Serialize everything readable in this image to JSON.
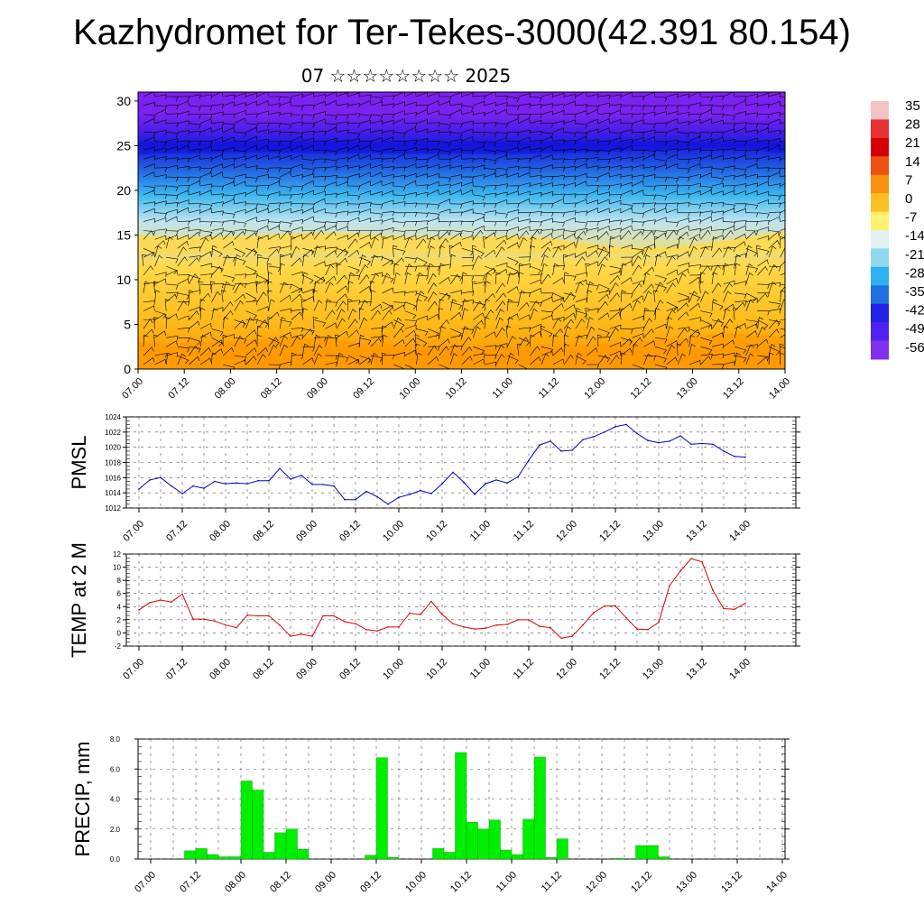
{
  "header": {
    "title": "Kazhydromet for Ter-Tekes-3000(42.391 80.154)",
    "subtitle": "07 ☆☆☆☆☆☆☆☆ 2025"
  },
  "colors": {
    "pmsl_line": "#0000cc",
    "temp_line": "#e00000",
    "precip_bar": "#00ee00",
    "precip_bar_edge": "#009900"
  },
  "chart_data": [
    {
      "type": "heatmap",
      "name": "wind-temperature-cross-section",
      "x_ticks": [
        "07.00",
        "07.12",
        "08.00",
        "08.12",
        "09.00",
        "09.12",
        "10.00",
        "10.12",
        "11.00",
        "11.12",
        "12.00",
        "12.12",
        "13.00",
        "13.12",
        "14.00"
      ],
      "y_ticks": [
        "0",
        "5",
        "10",
        "15",
        "20",
        "25",
        "30"
      ],
      "ylim": [
        0,
        31
      ],
      "colorbar_labels": [
        "35",
        "28",
        "21",
        "14",
        "7",
        "0",
        "-7",
        "-14",
        "-21",
        "-28",
        "-35",
        "-42",
        "-49",
        "-56"
      ],
      "colorbar_colors": [
        "#f4c4c4",
        "#e83030",
        "#d40000",
        "#f05010",
        "#f89010",
        "#fcc020",
        "#fff070",
        "#e0f0f0",
        "#90d8f0",
        "#30b0f0",
        "#2070e0",
        "#2020e8",
        "#5020f0",
        "#8030f0"
      ],
      "bands": [
        {
          "from": 0,
          "to": 3,
          "value": "orange",
          "color": "#ff9a00"
        },
        {
          "from": 3,
          "to": 8,
          "value": "light orange",
          "color": "#ffbc1a"
        },
        {
          "from": 8,
          "to": 15,
          "value": "yellow",
          "color": "#ffd94a"
        },
        {
          "from": 15,
          "to": 18,
          "value": "pale blue",
          "color": "#bfe4f0"
        },
        {
          "from": 18,
          "to": 21,
          "value": "sky blue",
          "color": "#3bb6ee"
        },
        {
          "from": 21,
          "to": 24,
          "value": "blue",
          "color": "#2060e0"
        },
        {
          "from": 24,
          "to": 26,
          "value": "deep blue",
          "color": "#1a1ae0"
        },
        {
          "from": 26,
          "to": 31,
          "value": "violet",
          "color": "#7b22f0"
        }
      ]
    },
    {
      "type": "line",
      "ylabel": "PMSL",
      "ylim": [
        1012,
        1024
      ],
      "y_ticks": [
        "1024",
        "1022",
        "1020",
        "1018",
        "1016",
        "1014",
        "1012"
      ],
      "x_ticks": [
        "07.00",
        "07.12",
        "08.00",
        "08.12",
        "09.00",
        "09.12",
        "10.00",
        "10.12",
        "11.00",
        "11.12",
        "12.00",
        "12.12",
        "13.00",
        "13.12",
        "14.00"
      ],
      "x_step_hours": 3,
      "series": [
        {
          "values": [
            1014.5,
            1015.7,
            1016.0,
            1014.9,
            1013.9,
            1014.9,
            1014.6,
            1015.5,
            1015.2,
            1015.3,
            1015.2,
            1015.6,
            1015.6,
            1017.2,
            1015.8,
            1016.3,
            1015.1,
            1015.1,
            1014.9,
            1013.1,
            1013.1,
            1014.2,
            1013.5,
            1012.5,
            1013.4,
            1013.8,
            1014.3,
            1013.9,
            1015.2,
            1016.7,
            1015.4,
            1013.8,
            1015.2,
            1015.7,
            1015.3,
            1016.1,
            1018.3,
            1020.3,
            1020.8,
            1019.5,
            1019.6,
            1021.0,
            1021.4,
            1022.0,
            1022.7,
            1023.0,
            1021.8,
            1020.9,
            1020.6,
            1020.8,
            1021.5,
            1020.4,
            1020.5,
            1020.4,
            1019.5,
            1018.8,
            1018.7
          ]
        }
      ]
    },
    {
      "type": "line",
      "ylabel": "TEMP at 2 M",
      "ylim": [
        -2,
        12
      ],
      "y_ticks": [
        "12",
        "10",
        "8",
        "6",
        "4",
        "2",
        "0",
        "-2"
      ],
      "x_ticks": [
        "07.00",
        "07.12",
        "08.00",
        "08.12",
        "09.00",
        "09.12",
        "10.00",
        "10.12",
        "11.00",
        "11.12",
        "12.00",
        "12.12",
        "13.00",
        "13.12",
        "14.00"
      ],
      "x_step_hours": 3,
      "series": [
        {
          "values": [
            3.5,
            4.6,
            5.0,
            4.7,
            5.9,
            2.1,
            2.1,
            1.8,
            1.2,
            0.8,
            2.7,
            2.6,
            2.6,
            1.2,
            -0.5,
            -0.2,
            -0.5,
            2.6,
            2.6,
            1.7,
            1.4,
            0.5,
            0.3,
            0.9,
            0.9,
            3.0,
            2.8,
            4.8,
            2.8,
            1.4,
            0.9,
            0.6,
            0.7,
            1.2,
            1.3,
            2.0,
            2.0,
            1.0,
            0.8,
            -0.8,
            -0.5,
            1.2,
            3.1,
            4.1,
            4.1,
            2.3,
            0.6,
            0.5,
            1.6,
            7.2,
            9.4,
            11.3,
            10.8,
            6.5,
            3.7,
            3.6,
            4.5
          ]
        }
      ]
    },
    {
      "type": "bar",
      "ylabel": "PRECIP, mm",
      "ylim": [
        0,
        8
      ],
      "y_ticks": [
        "8.0",
        "6.0",
        "4.0",
        "2.0",
        "0.0"
      ],
      "x_ticks": [
        "07.00",
        "07.12",
        "08.00",
        "08.12",
        "09.00",
        "09.12",
        "10.00",
        "10.12",
        "11.00",
        "11.12",
        "12.00",
        "12.12",
        "13.00",
        "13.12",
        "14.00"
      ],
      "x_step_hours": 3,
      "values": [
        0,
        0,
        0,
        0.55,
        0.7,
        0.3,
        0.15,
        0.15,
        5.2,
        4.6,
        0.45,
        1.75,
        2.0,
        0.65,
        0,
        0,
        0,
        0,
        0,
        0.25,
        6.75,
        0.1,
        0,
        0,
        0,
        0.7,
        0.45,
        7.1,
        2.45,
        2.0,
        2.6,
        0.6,
        0.3,
        2.65,
        6.8,
        0.1,
        1.35,
        0,
        0,
        0,
        0,
        0.05,
        0,
        0.9,
        0.9,
        0.15,
        0,
        0,
        0,
        0,
        0,
        0,
        0,
        0,
        0,
        0
      ]
    }
  ]
}
